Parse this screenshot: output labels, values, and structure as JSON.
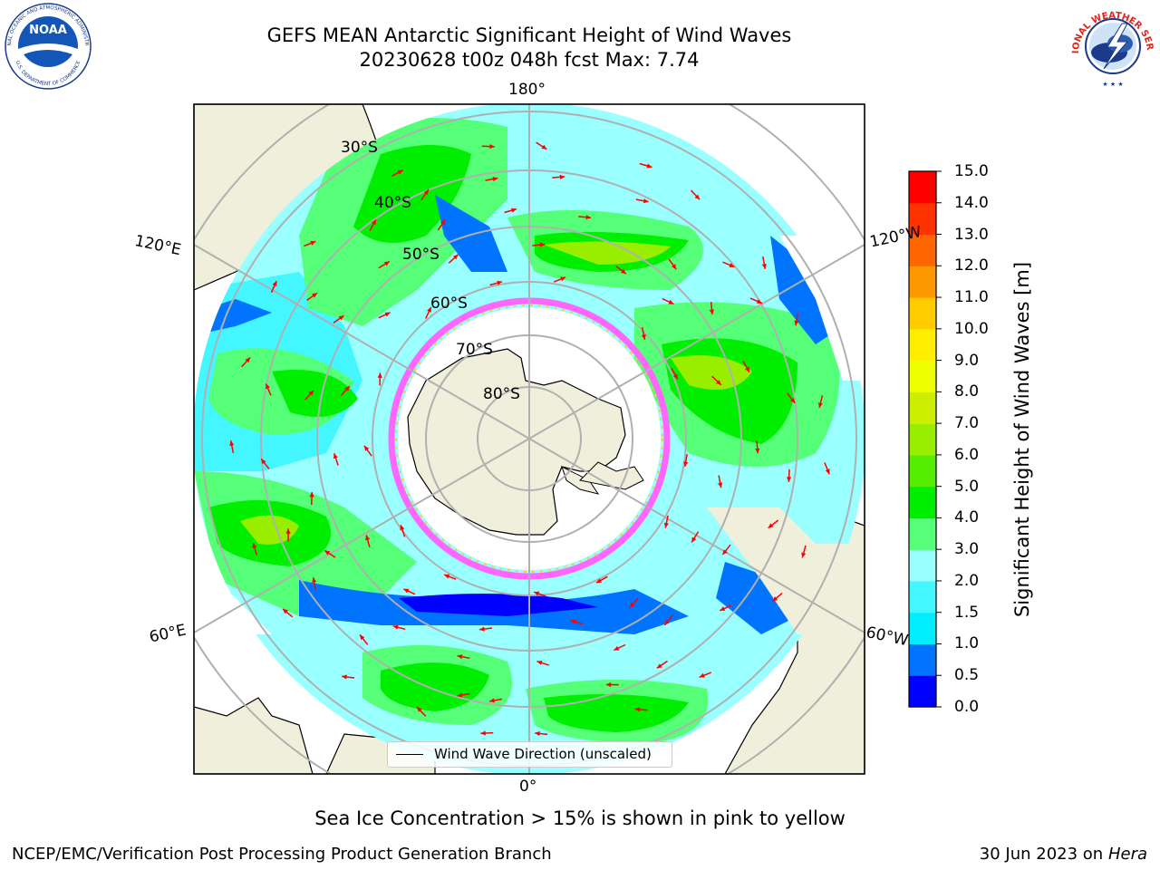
{
  "header": {
    "title_line1": "GEFS MEAN Antarctic Significant Height of Wind Waves",
    "title_line2": "20230628 t00z 048h fcst   Max: 7.74"
  },
  "logos": {
    "left": "noaa-logo",
    "left_text": "NOAA",
    "left_ring_text": "NATIONAL OCEANIC AND ATMOSPHERIC ADMINISTRATION",
    "left_ring_text_bottom": "U.S. DEPARTMENT OF COMMERCE",
    "right": "national-weather-service-logo",
    "right_ring_text": "NATIONAL WEATHER SERVICE"
  },
  "map": {
    "projection": "south-polar-stereographic",
    "longitude_labels": {
      "top": "180°",
      "bottom": "0°",
      "upper_left": "120°E",
      "upper_right": "120°W",
      "lower_left": "60°E",
      "lower_right": "60°W"
    },
    "latitude_labels": [
      "30°S",
      "40°S",
      "50°S",
      "60°S",
      "70°S",
      "80°S"
    ],
    "land_color": "#efefdc",
    "ice_edge_colors": [
      "#ff66ff",
      "#ff00ff",
      "#ffcc33"
    ],
    "vector_color": "#ff0000",
    "legend": "Wind Wave Direction (unscaled)"
  },
  "colorbar": {
    "title": "Significant Height of Wind Waves [m]",
    "min": 0.0,
    "max": 15.0,
    "ticks": [
      "15.0",
      "14.0",
      "13.0",
      "12.0",
      "11.0",
      "10.0",
      "9.0",
      "8.0",
      "7.0",
      "6.0",
      "5.0",
      "4.0",
      "3.0",
      "2.0",
      "1.5",
      "1.0",
      "0.5",
      "0.0"
    ],
    "colors_bottom_to_top": [
      "#0000ff",
      "#0073ff",
      "#00eeff",
      "#44f6ff",
      "#99ffff",
      "#55ff77",
      "#00ee00",
      "#55ee00",
      "#99ee00",
      "#ccee00",
      "#eeff00",
      "#ffee00",
      "#ffcc00",
      "#ff9900",
      "#ff6600",
      "#ff3300",
      "#ff0000"
    ]
  },
  "footer": {
    "ice_note": "Sea Ice Concentration > 15% is shown in pink to yellow",
    "left": "NCEP/EMC/Verification Post Processing Product Generation Branch",
    "right_date": "30 Jun 2023 on",
    "right_system": "Hera"
  }
}
